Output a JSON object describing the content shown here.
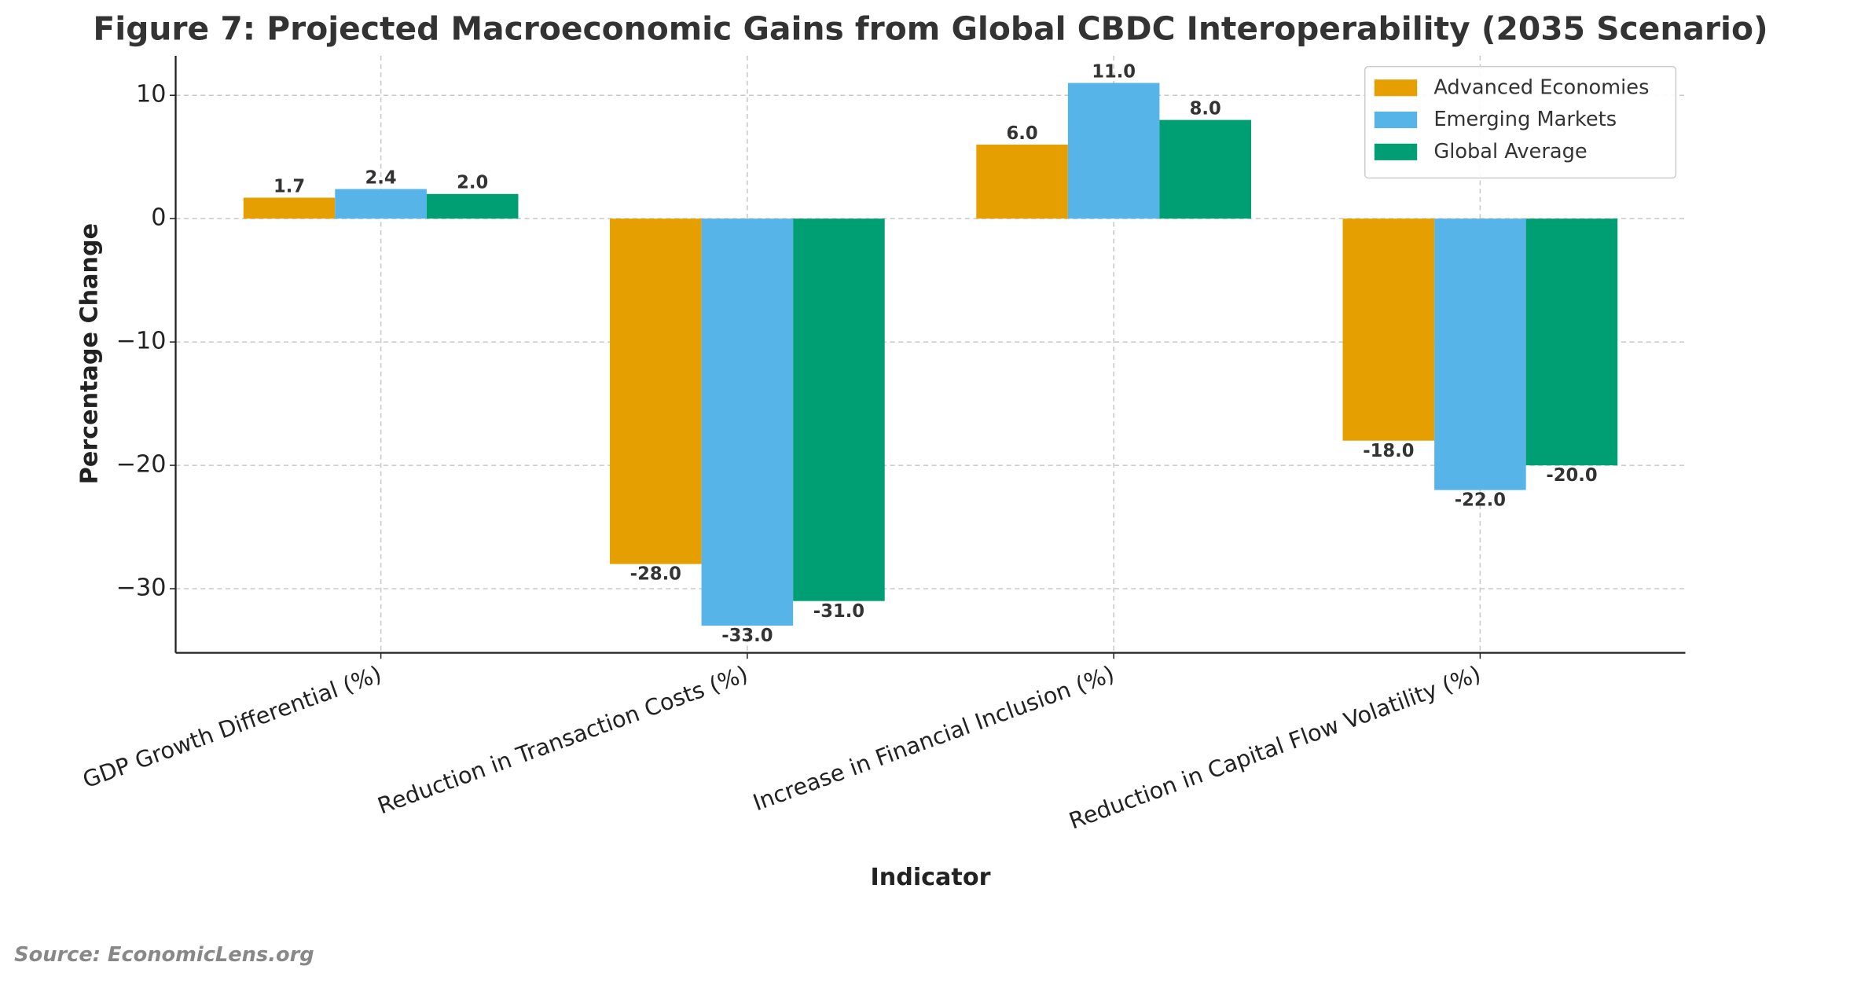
{
  "chart_data": {
    "type": "bar",
    "title": "Figure 7: Projected Macroeconomic Gains from Global CBDC Interoperability (2035 Scenario)",
    "x_label": "Indicator",
    "y_label": "Percentage Change",
    "categories": [
      "GDP Growth Differential (%)",
      "Reduction in Transaction Costs (%)",
      "Increase in Financial Inclusion (%)",
      "Reduction in Capital Flow Volatility (%)"
    ],
    "series": [
      {
        "name": "Advanced Economies",
        "color": "#e69f00",
        "values": [
          1.7,
          -28,
          6,
          -18
        ],
        "value_labels": [
          "1.7",
          "-28.0",
          "6.0",
          "-18.0"
        ]
      },
      {
        "name": "Emerging Markets",
        "color": "#56b4e9",
        "values": [
          2.4,
          -33,
          11,
          -22
        ],
        "value_labels": [
          "2.4",
          "-33.0",
          "11.0",
          "-22.0"
        ]
      },
      {
        "name": "Global Average",
        "color": "#009e73",
        "values": [
          2,
          -31,
          8,
          -20
        ],
        "value_labels": [
          "2.0",
          "-31.0",
          "8.0",
          "-20.0"
        ]
      }
    ],
    "ylim": [
      -35.2,
      13.2
    ],
    "yticks": [
      {
        "value": -30,
        "label": "−30"
      },
      {
        "value": -20,
        "label": "−20"
      },
      {
        "value": -10,
        "label": "−10"
      },
      0,
      10
    ],
    "grid": true,
    "legend": "upper right",
    "source": "Source: EconomicLens.org"
  }
}
